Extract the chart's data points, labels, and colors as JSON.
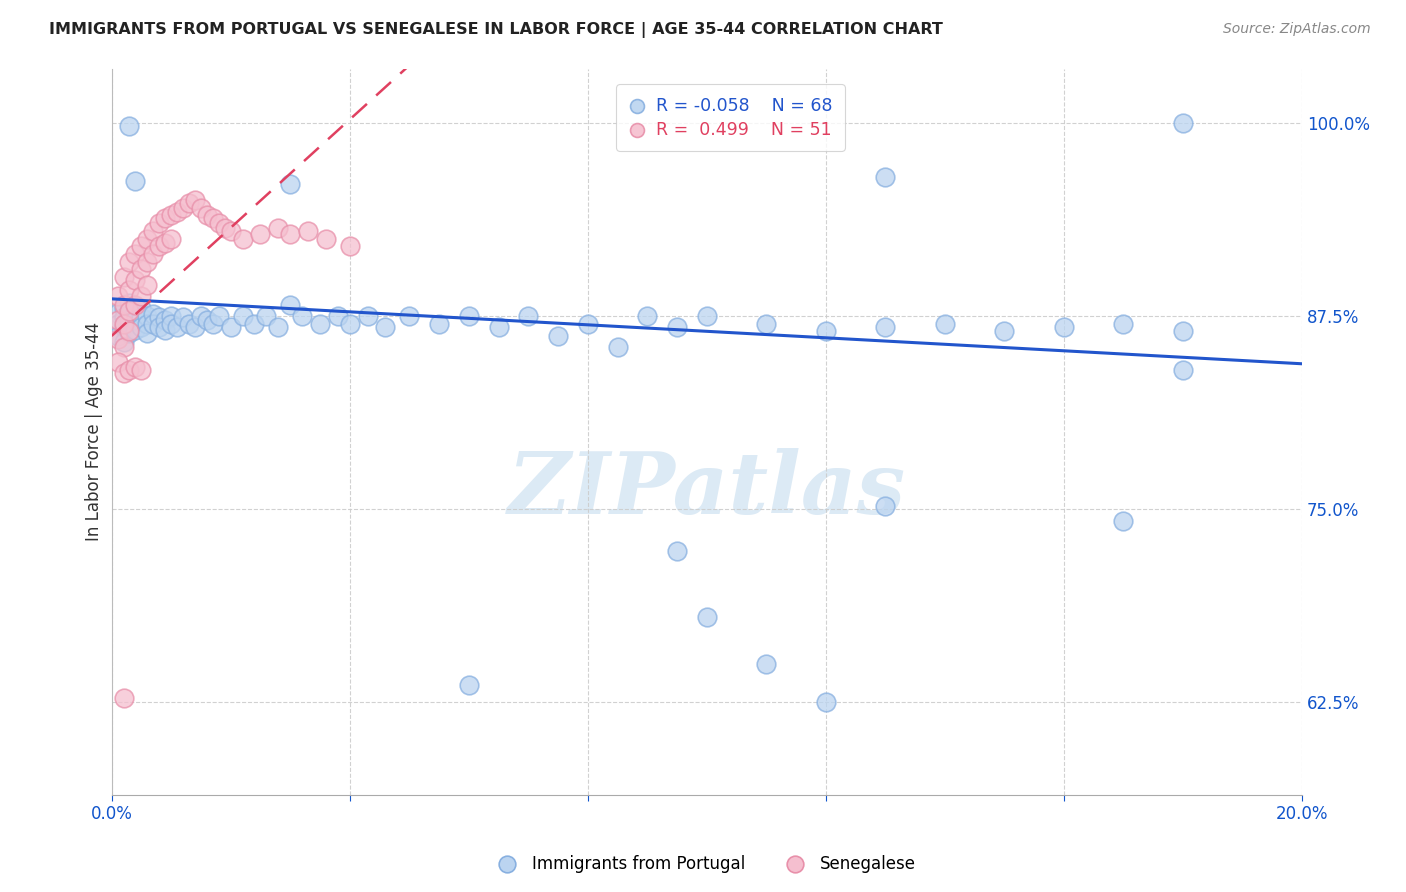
{
  "title": "IMMIGRANTS FROM PORTUGAL VS SENEGALESE IN LABOR FORCE | AGE 35-44 CORRELATION CHART",
  "source": "Source: ZipAtlas.com",
  "ylabel": "In Labor Force | Age 35-44",
  "xlim": [
    0.0,
    0.2
  ],
  "ylim": [
    0.565,
    1.035
  ],
  "xticks": [
    0.0,
    0.04,
    0.08,
    0.12,
    0.16,
    0.2
  ],
  "xticklabels": [
    "0.0%",
    "",
    "",
    "",
    "",
    "20.0%"
  ],
  "yticks": [
    0.625,
    0.75,
    0.875,
    1.0
  ],
  "yticklabels": [
    "62.5%",
    "75.0%",
    "87.5%",
    "100.0%"
  ],
  "blue_scatter_color": "#bbd4f0",
  "blue_edge_color": "#88b0e0",
  "pink_scatter_color": "#f5bfcf",
  "pink_edge_color": "#e890aa",
  "blue_line_color": "#2255cc",
  "pink_line_color": "#e04060",
  "watermark_color": "#dceaf5",
  "portugal_x": [
    0.001,
    0.001,
    0.001,
    0.002,
    0.002,
    0.002,
    0.002,
    0.003,
    0.003,
    0.003,
    0.003,
    0.004,
    0.004,
    0.004,
    0.005,
    0.005,
    0.005,
    0.006,
    0.006,
    0.006,
    0.007,
    0.007,
    0.008,
    0.008,
    0.009,
    0.009,
    0.01,
    0.01,
    0.011,
    0.012,
    0.013,
    0.014,
    0.015,
    0.016,
    0.017,
    0.018,
    0.02,
    0.022,
    0.024,
    0.026,
    0.028,
    0.03,
    0.032,
    0.035,
    0.038,
    0.04,
    0.043,
    0.046,
    0.05,
    0.055,
    0.06,
    0.065,
    0.07,
    0.075,
    0.08,
    0.085,
    0.09,
    0.095,
    0.1,
    0.11,
    0.12,
    0.13,
    0.14,
    0.15,
    0.16,
    0.17,
    0.18,
    0.18
  ],
  "portugal_y": [
    0.877,
    0.87,
    0.862,
    0.88,
    0.874,
    0.868,
    0.858,
    0.883,
    0.876,
    0.871,
    0.864,
    0.878,
    0.872,
    0.866,
    0.88,
    0.874,
    0.868,
    0.875,
    0.87,
    0.864,
    0.876,
    0.87,
    0.874,
    0.868,
    0.872,
    0.866,
    0.875,
    0.87,
    0.868,
    0.874,
    0.87,
    0.868,
    0.875,
    0.872,
    0.87,
    0.875,
    0.868,
    0.875,
    0.87,
    0.875,
    0.868,
    0.882,
    0.875,
    0.87,
    0.875,
    0.87,
    0.875,
    0.868,
    0.875,
    0.87,
    0.875,
    0.868,
    0.875,
    0.862,
    0.87,
    0.855,
    0.875,
    0.868,
    0.875,
    0.87,
    0.865,
    0.868,
    0.87,
    0.865,
    0.868,
    0.87,
    0.865,
    0.84
  ],
  "portugal_outliers_x": [
    0.003,
    0.004,
    0.03,
    0.06,
    0.1,
    0.11,
    0.12,
    0.13,
    0.17,
    0.18,
    0.13,
    0.095
  ],
  "portugal_outliers_y": [
    0.998,
    0.962,
    0.96,
    0.636,
    0.68,
    0.65,
    0.625,
    0.752,
    0.742,
    1.0,
    0.965,
    0.723
  ],
  "senegal_x": [
    0.001,
    0.001,
    0.001,
    0.002,
    0.002,
    0.002,
    0.002,
    0.003,
    0.003,
    0.003,
    0.003,
    0.004,
    0.004,
    0.004,
    0.005,
    0.005,
    0.005,
    0.006,
    0.006,
    0.006,
    0.007,
    0.007,
    0.008,
    0.008,
    0.009,
    0.009,
    0.01,
    0.01,
    0.011,
    0.012,
    0.013,
    0.014,
    0.015,
    0.016,
    0.017,
    0.018,
    0.019,
    0.02,
    0.022,
    0.025,
    0.028,
    0.03,
    0.033,
    0.036,
    0.04,
    0.001,
    0.002,
    0.003,
    0.004,
    0.005,
    0.002
  ],
  "senegal_y": [
    0.888,
    0.872,
    0.86,
    0.9,
    0.882,
    0.87,
    0.855,
    0.91,
    0.892,
    0.878,
    0.865,
    0.915,
    0.898,
    0.882,
    0.92,
    0.905,
    0.888,
    0.925,
    0.91,
    0.895,
    0.93,
    0.915,
    0.935,
    0.92,
    0.938,
    0.922,
    0.94,
    0.925,
    0.942,
    0.945,
    0.948,
    0.95,
    0.945,
    0.94,
    0.938,
    0.935,
    0.932,
    0.93,
    0.925,
    0.928,
    0.932,
    0.928,
    0.93,
    0.925,
    0.92,
    0.845,
    0.838,
    0.84,
    0.842,
    0.84,
    0.628
  ]
}
